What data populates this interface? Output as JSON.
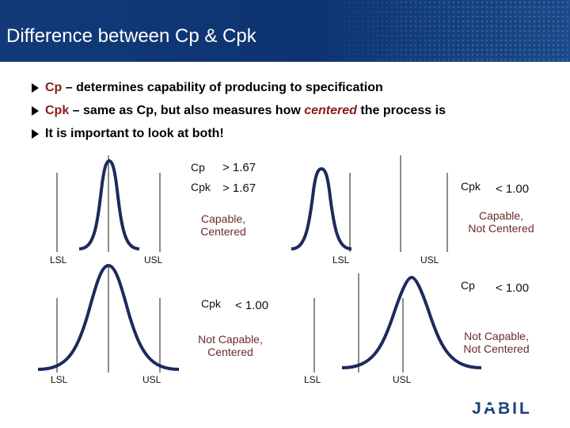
{
  "title": "Difference between Cp & Cpk",
  "bullets": [
    {
      "keyword": "Cp",
      "text": " – determines capability of producing to specification"
    },
    {
      "keyword": "Cpk",
      "text_before": " – same as Cp, but also measures how ",
      "emphasis": "centered",
      "text_after": " the process is"
    },
    {
      "text": "It is important to look at both!"
    }
  ],
  "panels": {
    "top_left": {
      "cp_label": "Cp",
      "cp_value": "> 1.67",
      "cpk_label": "Cpk",
      "cpk_value": "> 1.67",
      "status": [
        "Capable,",
        "Centered"
      ],
      "lsl": "LSL",
      "usl": "USL"
    },
    "top_right": {
      "cpk_label": "Cpk",
      "cpk_value": "< 1.00",
      "status": [
        "Capable,",
        "Not Centered"
      ],
      "lsl": "LSL",
      "usl": "USL"
    },
    "bottom_left": {
      "cpk_label": "Cpk",
      "cpk_value": "< 1.00",
      "status": [
        "Not Capable,",
        "Centered"
      ],
      "lsl": "LSL",
      "usl": "USL"
    },
    "bottom_right": {
      "cp_label": "Cp",
      "cp_value": "< 1.00",
      "status": [
        "Not Capable,",
        "Not Centered"
      ],
      "lsl": "LSL",
      "usl": "USL"
    }
  },
  "logo_text": "JABIL",
  "colors": {
    "curve": "#1c2a5e",
    "title_bar": "#123a78",
    "keyword": "#8b1a1a",
    "spec_line": "#8c8c8c"
  }
}
